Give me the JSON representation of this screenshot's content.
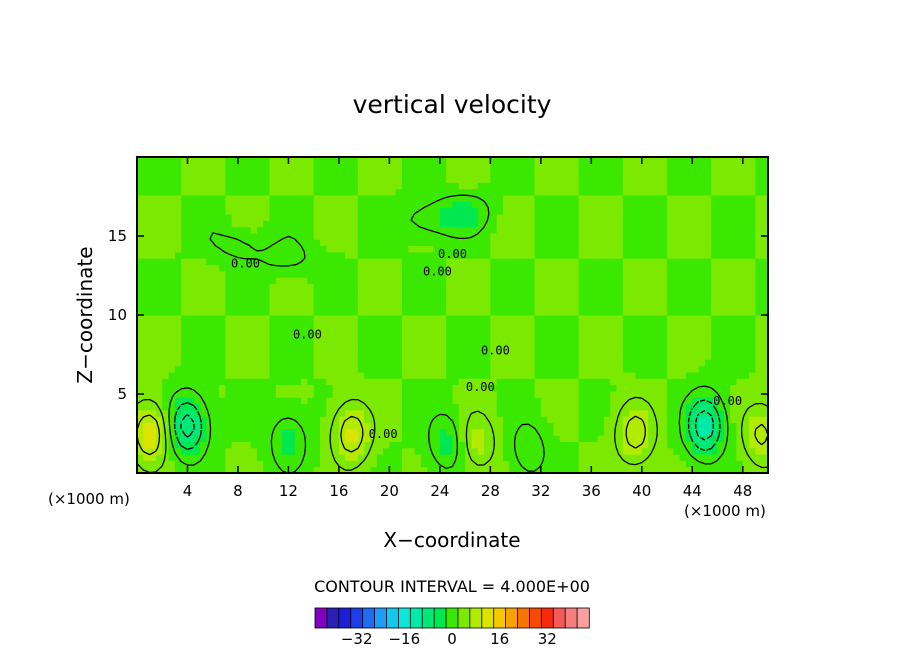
{
  "chart_data": {
    "type": "heatmap",
    "title": "vertical velocity",
    "xlabel": "X−coordinate",
    "ylabel": "Z−coordinate",
    "x_unit_label_left": "(×1000 m)",
    "x_unit_label_right": "(×1000 m)",
    "xlim": [
      0,
      50
    ],
    "ylim": [
      0,
      20
    ],
    "x_ticks": [
      4,
      8,
      12,
      16,
      20,
      24,
      28,
      32,
      36,
      40,
      44,
      48
    ],
    "y_ticks": [
      5,
      10,
      15
    ],
    "contour_interval_text": "CONTOUR INTERVAL = 4.000E+00",
    "contour_interval": 4.0,
    "contour_label": "0.00",
    "colorbar": {
      "colors": [
        "#7f00bf",
        "#2a1fb4",
        "#1d1fd6",
        "#1f3ee6",
        "#1f6bf2",
        "#1f9cf5",
        "#14c7f0",
        "#0fe6d8",
        "#00eba8",
        "#00e878",
        "#00e84f",
        "#3be800",
        "#7cea00",
        "#b2ea00",
        "#dae400",
        "#f5c800",
        "#f7a200",
        "#f77400",
        "#f74a00",
        "#f72a10",
        "#f45a58",
        "#f27e7e",
        "#f8a0a0"
      ],
      "tick_labels": [
        "−32",
        "−16",
        "0",
        "16",
        "32"
      ],
      "tick_values": [
        -32,
        -16,
        0,
        16,
        32
      ]
    },
    "field_features": [
      {
        "x": 1,
        "z": 2.5,
        "value": 10
      },
      {
        "x": 4,
        "z": 3,
        "value": -12
      },
      {
        "x": 12,
        "z": 2,
        "value": -5
      },
      {
        "x": 17,
        "z": 2.5,
        "value": 9
      },
      {
        "x": 24.5,
        "z": 2,
        "value": -5
      },
      {
        "x": 27,
        "z": 2,
        "value": 5
      },
      {
        "x": 31,
        "z": 1.5,
        "value": -4
      },
      {
        "x": 39.5,
        "z": 2.5,
        "value": 8
      },
      {
        "x": 45,
        "z": 3,
        "value": -13
      },
      {
        "x": 49.5,
        "z": 2.5,
        "value": 7
      },
      {
        "x": 23,
        "z": 16,
        "value": -4
      },
      {
        "x": 26,
        "z": 16.5,
        "value": -4
      },
      {
        "x": 12,
        "z": 13.5,
        "value": -3
      },
      {
        "x": 8,
        "z": 14.5,
        "value": -3
      }
    ],
    "background_value": 2
  }
}
